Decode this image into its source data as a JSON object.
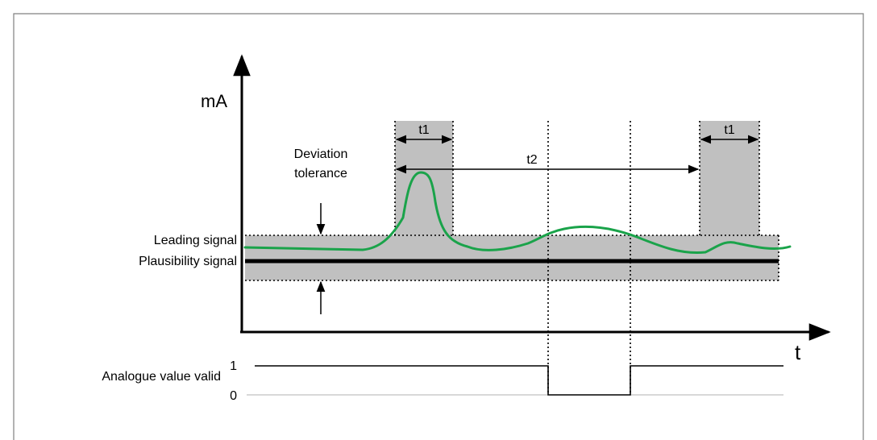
{
  "axes": {
    "y_label": "mA",
    "x_label": "t"
  },
  "labels": {
    "deviation_tolerance_line1": "Deviation",
    "deviation_tolerance_line2": "tolerance",
    "leading_signal": "Leading signal",
    "plausibility_signal": "Plausibility signal",
    "analogue_value_valid": "Analogue value valid",
    "level_high": "1",
    "level_low": "0"
  },
  "timers": {
    "t1_first": "t1",
    "t1_second": "t1",
    "t2": "t2"
  },
  "colors": {
    "tolerance_band": "#c0c0c0",
    "leading_signal": "#1aa34a",
    "plausibility_signal": "#000000",
    "axis": "#000000",
    "frame": "#808080"
  }
}
